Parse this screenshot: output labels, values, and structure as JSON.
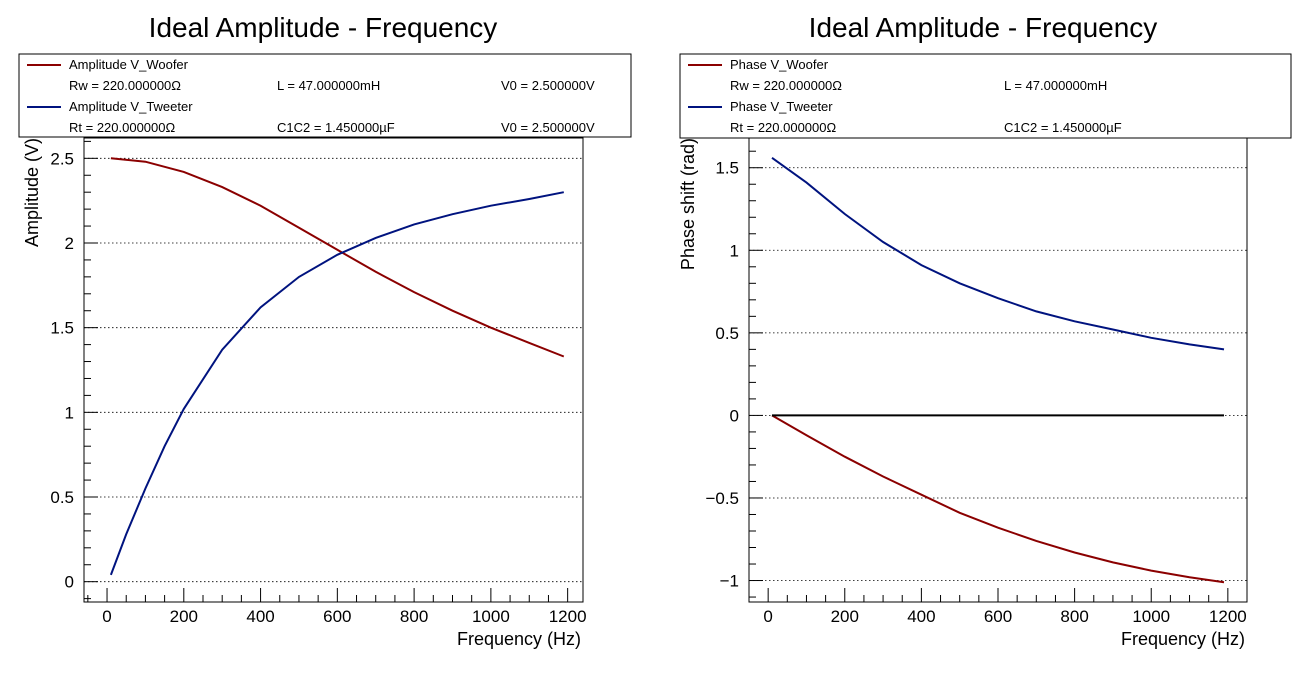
{
  "colors": {
    "woofer": "#8b0000",
    "tweeter": "#00137f",
    "zero_line": "#000000"
  },
  "chart_data": [
    {
      "type": "line",
      "title": "Ideal Amplitude - Frequency",
      "xlabel": "Frequency (Hz)",
      "ylabel": "Amplitude (V)",
      "xlim": [
        -60,
        1240
      ],
      "ylim": [
        -0.12,
        2.62
      ],
      "xticks": [
        0,
        200,
        400,
        600,
        800,
        1000,
        1200
      ],
      "xtick_labels": [
        "0",
        "200",
        "400",
        "600",
        "800",
        "1000",
        "1200"
      ],
      "yticks": [
        0,
        0.5,
        1,
        1.5,
        2,
        2.5
      ],
      "ytick_labels": [
        "0",
        "0.5",
        "1",
        "1.5",
        "2",
        "2.5"
      ],
      "grid": "y-dotted",
      "legend_position": "top",
      "legend": [
        {
          "label": "Amplitude V_Woofer",
          "series": 0,
          "params": [
            "Rw = 220.000000Ω",
            "L  = 47.000000mH",
            "V0 = 2.500000V"
          ]
        },
        {
          "label": "Amplitude V_Tweeter",
          "series": 1,
          "params": [
            "Rt = 220.000000Ω",
            "C1C2 = 1.450000µF",
            "V0 = 2.500000V"
          ]
        }
      ],
      "series": [
        {
          "name": "Amplitude V_Woofer",
          "color": "#8b0000",
          "x": [
            10,
            100,
            200,
            300,
            400,
            500,
            600,
            700,
            800,
            900,
            1000,
            1100,
            1190
          ],
          "y": [
            2.5,
            2.48,
            2.42,
            2.33,
            2.22,
            2.09,
            1.96,
            1.83,
            1.71,
            1.6,
            1.5,
            1.41,
            1.33
          ]
        },
        {
          "name": "Amplitude V_Tweeter",
          "color": "#00137f",
          "x": [
            10,
            50,
            100,
            150,
            200,
            300,
            400,
            500,
            600,
            700,
            800,
            900,
            1000,
            1100,
            1190
          ],
          "y": [
            0.04,
            0.28,
            0.55,
            0.8,
            1.02,
            1.37,
            1.62,
            1.8,
            1.93,
            2.03,
            2.11,
            2.17,
            2.22,
            2.26,
            2.3
          ]
        }
      ]
    },
    {
      "type": "line",
      "title": "Ideal Amplitude - Frequency",
      "xlabel": "Frequency (Hz)",
      "ylabel": "Phase shift (rad)",
      "xlim": [
        -50,
        1250
      ],
      "ylim": [
        -1.13,
        1.68
      ],
      "xticks": [
        0,
        200,
        400,
        600,
        800,
        1000,
        1200
      ],
      "xtick_labels": [
        "0",
        "200",
        "400",
        "600",
        "800",
        "1000",
        "1200"
      ],
      "yticks": [
        -1,
        -0.5,
        0,
        0.5,
        1,
        1.5
      ],
      "ytick_labels": [
        "−1",
        "−0.5",
        "0",
        "0.5",
        "1",
        "1.5"
      ],
      "grid": "y-dotted",
      "legend_position": "top",
      "legend": [
        {
          "label": "Phase V_Woofer",
          "series": 0,
          "params": [
            "Rw = 220.000000Ω",
            "L  = 47.000000mH"
          ]
        },
        {
          "label": "Phase V_Tweeter",
          "series": 1,
          "params": [
            "Rt = 220.000000Ω",
            "C1C2 = 1.450000µF"
          ]
        }
      ],
      "series": [
        {
          "name": "Phase V_Woofer",
          "color": "#8b0000",
          "x": [
            10,
            100,
            200,
            300,
            400,
            500,
            600,
            700,
            800,
            900,
            1000,
            1100,
            1190
          ],
          "y": [
            0.0,
            -0.12,
            -0.25,
            -0.37,
            -0.48,
            -0.59,
            -0.68,
            -0.76,
            -0.83,
            -0.89,
            -0.94,
            -0.98,
            -1.01
          ]
        },
        {
          "name": "Phase V_Tweeter",
          "color": "#00137f",
          "x": [
            10,
            100,
            200,
            300,
            400,
            500,
            600,
            700,
            800,
            900,
            1000,
            1100,
            1190
          ],
          "y": [
            1.56,
            1.41,
            1.22,
            1.05,
            0.91,
            0.8,
            0.71,
            0.63,
            0.57,
            0.52,
            0.47,
            0.43,
            0.4
          ]
        },
        {
          "name": "",
          "color": "#000000",
          "x": [
            10,
            1190
          ],
          "y": [
            0,
            0
          ]
        }
      ]
    }
  ]
}
